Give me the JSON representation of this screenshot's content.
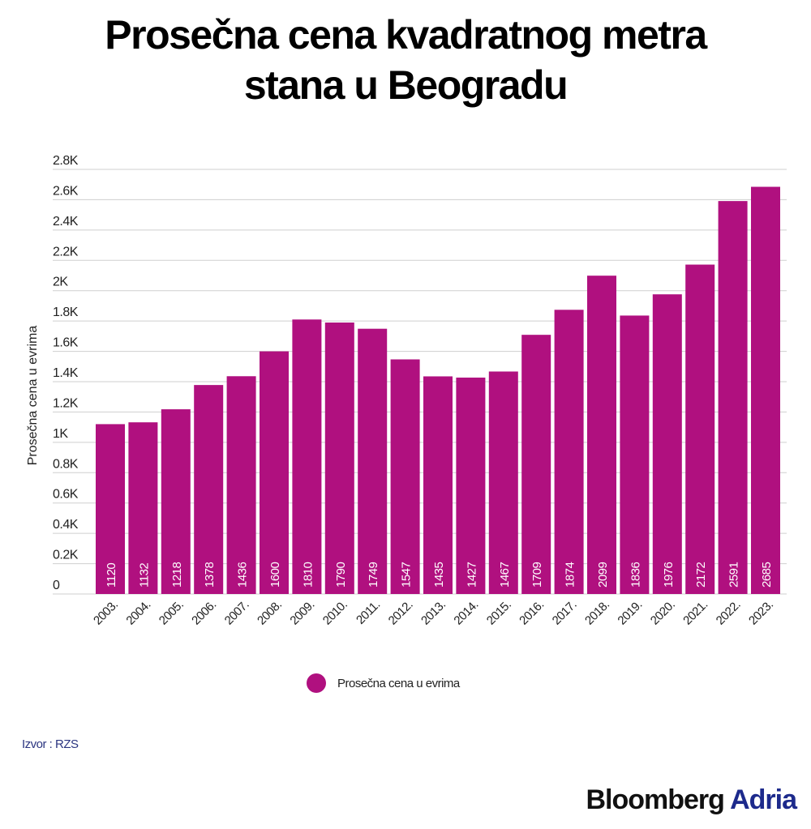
{
  "chart_data": {
    "type": "bar",
    "title": "Prosečna cena kvadratnog metra stana u Beogradu",
    "ylabel": "Prosečna cena u evrima",
    "xlabel": "",
    "categories": [
      "2003.",
      "2004.",
      "2005.",
      "2006.",
      "2007.",
      "2008.",
      "2009.",
      "2010.",
      "2011.",
      "2012.",
      "2013.",
      "2014.",
      "2015.",
      "2016.",
      "2017.",
      "2018.",
      "2019.",
      "2020.",
      "2021.",
      "2022.",
      "2023."
    ],
    "series": [
      {
        "name": "Prosečna cena u evrima",
        "values": [
          1120,
          1132,
          1218,
          1378,
          1436,
          1600,
          1810,
          1790,
          1749,
          1547,
          1435,
          1427,
          1467,
          1709,
          1874,
          2099,
          1836,
          1976,
          2172,
          2591,
          2685
        ],
        "color": "#b0107f"
      }
    ],
    "ylim": [
      0,
      2800
    ],
    "yticks": [
      0,
      200,
      400,
      600,
      800,
      1000,
      1200,
      1400,
      1600,
      1800,
      2000,
      2200,
      2400,
      2600,
      2800
    ],
    "ytick_labels": [
      "0",
      "0.2K",
      "0.4K",
      "0.6K",
      "0.8K",
      "1K",
      "1.2K",
      "1.4K",
      "1.6K",
      "1.8K",
      "2K",
      "2.2K",
      "2.4K",
      "2.6K",
      "2.8K"
    ],
    "grid": true,
    "legend": "bottom-center",
    "data_labels": "inside-bottom-vertical"
  },
  "title_lines": [
    "Prosečna cena kvadratnog metra",
    "stana u Beogradu"
  ],
  "source": "Izvor : RZS",
  "logo": {
    "part1": "Bloomberg",
    "part2": "Adria"
  }
}
